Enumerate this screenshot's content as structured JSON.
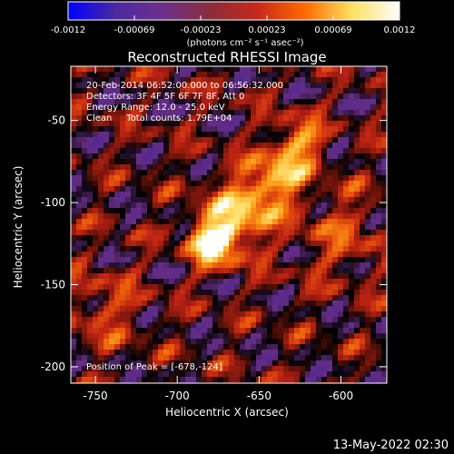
{
  "colorbar": {
    "ticks": [
      "-0.0012",
      "-0.00069",
      "-0.00023",
      "0.00023",
      "0.00069",
      "0.0012"
    ],
    "unit_label": "(photons cm⁻² s⁻¹ asec⁻²)",
    "stops": [
      "#0000ff",
      "#4a2aa0",
      "#6e2f8c",
      "#8a2d3a",
      "#c7281c",
      "#ff6a00",
      "#ffe060",
      "#ffffff"
    ]
  },
  "chart_data": {
    "type": "heatmap",
    "title": "Reconstructed RHESSI Image",
    "xlabel": "Heliocentric X (arcsec)",
    "ylabel": "Heliocentric Y (arcsec)",
    "xlim": [
      -765,
      -572
    ],
    "ylim": [
      -210,
      -17
    ],
    "xticks": [
      "-750",
      "-700",
      "-650",
      "-600"
    ],
    "yticks": [
      "-50",
      "-100",
      "-150",
      "-200"
    ],
    "xtick_values": [
      -750,
      -700,
      -650,
      -600
    ],
    "ytick_values": [
      -50,
      -100,
      -150,
      -200
    ],
    "annotations": [
      "20-Feb-2014 06:52:00.000 to 06:56:32.000",
      "Detectors: 3F 4F 5F 6F 7F 8F, Att 0",
      "Energy Range: 12.0 - 25.0 keV",
      "Clean     Total counts: 1.79E+04"
    ],
    "peak_label": "Position of Peak = [-678,-124]",
    "peak": {
      "x": -678,
      "y": -124
    },
    "sources": [
      {
        "x": -678,
        "y": -124,
        "intensity": 1.0,
        "sigma": 10
      },
      {
        "x": -665,
        "y": -110,
        "intensity": 0.55,
        "sigma": 14
      },
      {
        "x": -650,
        "y": -96,
        "intensity": 0.45,
        "sigma": 13
      },
      {
        "x": -636,
        "y": -82,
        "intensity": 0.55,
        "sigma": 11
      },
      {
        "x": -625,
        "y": -63,
        "intensity": 0.6,
        "sigma": 10
      },
      {
        "x": -600,
        "y": -120,
        "intensity": 0.3,
        "sigma": 18
      },
      {
        "x": -745,
        "y": -165,
        "intensity": 0.3,
        "sigma": 16
      }
    ]
  },
  "footer": {
    "timestamp": "13-May-2022 02:30"
  }
}
